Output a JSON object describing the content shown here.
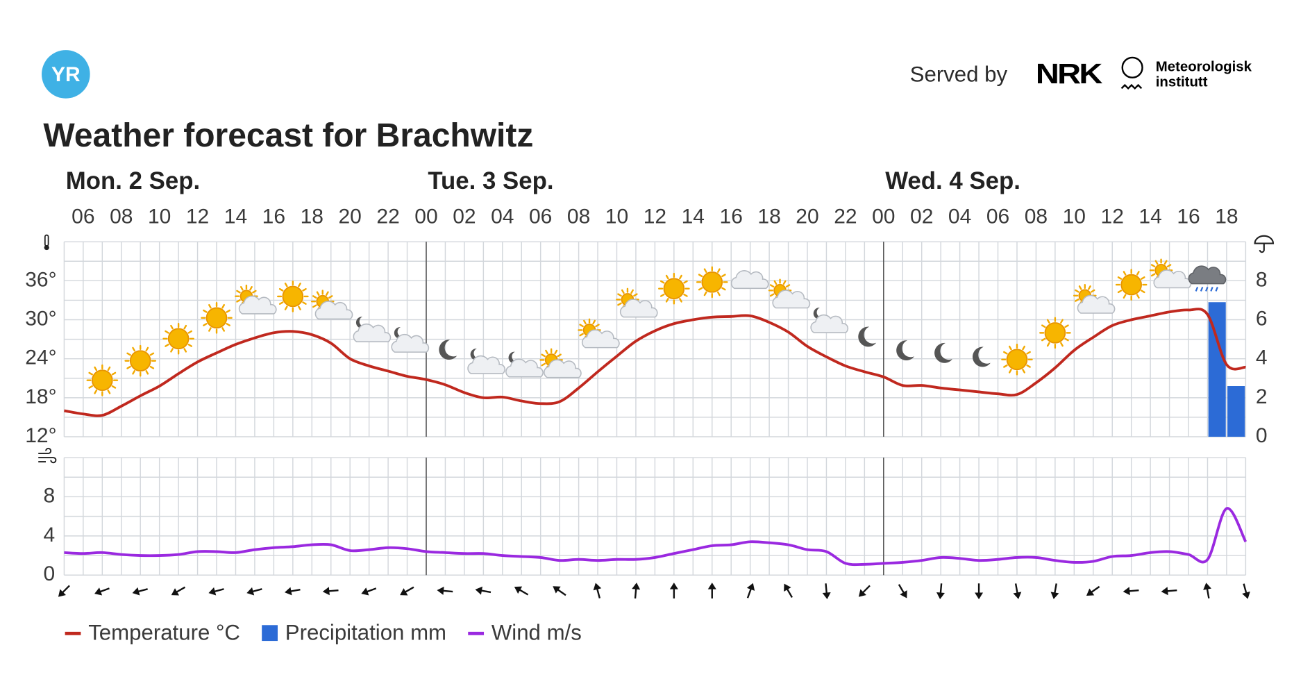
{
  "header": {
    "logo": "YR",
    "served_by": "Served by",
    "nrk": "NRK",
    "met": [
      "Meteorologisk",
      "institutt"
    ]
  },
  "chart_data": [
    {
      "type": "line",
      "title": "Weather forecast for Brachwitz",
      "days": [
        {
          "value": 0,
          "label": "Mon. 2 Sep."
        },
        {
          "value": 24,
          "label": "Tue. 3 Sep."
        },
        {
          "value": 48,
          "label": "Wed. 4 Sep."
        }
      ],
      "x": [
        5,
        6,
        7,
        8,
        9,
        10,
        11,
        12,
        13,
        14,
        15,
        16,
        17,
        18,
        19,
        20,
        21,
        22,
        23,
        24,
        25,
        26,
        27,
        28,
        29,
        30,
        31,
        32,
        33,
        34,
        35,
        36,
        37,
        38,
        39,
        40,
        41,
        42,
        43,
        44,
        45,
        46,
        47,
        48,
        49,
        50,
        51,
        52,
        53,
        54,
        55,
        56,
        57,
        58,
        59,
        60,
        61,
        62,
        63,
        64,
        65,
        66,
        67
      ],
      "xlim": [
        5,
        67
      ],
      "xticks": [
        {
          "value": 6,
          "label": "06"
        },
        {
          "value": 8,
          "label": "08"
        },
        {
          "value": 10,
          "label": "10"
        },
        {
          "value": 12,
          "label": "12"
        },
        {
          "value": 14,
          "label": "14"
        },
        {
          "value": 16,
          "label": "16"
        },
        {
          "value": 18,
          "label": "18"
        },
        {
          "value": 20,
          "label": "20"
        },
        {
          "value": 22,
          "label": "22"
        },
        {
          "value": 24,
          "label": "00"
        },
        {
          "value": 26,
          "label": "02"
        },
        {
          "value": 28,
          "label": "04"
        },
        {
          "value": 30,
          "label": "06"
        },
        {
          "value": 32,
          "label": "08"
        },
        {
          "value": 34,
          "label": "10"
        },
        {
          "value": 36,
          "label": "12"
        },
        {
          "value": 38,
          "label": "14"
        },
        {
          "value": 40,
          "label": "16"
        },
        {
          "value": 42,
          "label": "18"
        },
        {
          "value": 44,
          "label": "20"
        },
        {
          "value": 46,
          "label": "22"
        },
        {
          "value": 48,
          "label": "00"
        },
        {
          "value": 50,
          "label": "02"
        },
        {
          "value": 52,
          "label": "04"
        },
        {
          "value": 54,
          "label": "06"
        },
        {
          "value": 56,
          "label": "08"
        },
        {
          "value": 58,
          "label": "10"
        },
        {
          "value": 60,
          "label": "12"
        },
        {
          "value": 62,
          "label": "14"
        },
        {
          "value": 64,
          "label": "16"
        },
        {
          "value": 66,
          "label": "18"
        }
      ],
      "ylim": [
        12,
        42
      ],
      "yticks": [
        {
          "value": 12,
          "label": "12°"
        },
        {
          "value": 18,
          "label": "18°"
        },
        {
          "value": 24,
          "label": "24°"
        },
        {
          "value": 30,
          "label": "30°"
        },
        {
          "value": 36,
          "label": "36°"
        }
      ],
      "ygrid": [
        12,
        15,
        18,
        21,
        24,
        27,
        30,
        33,
        36,
        39,
        42
      ],
      "y2lim": [
        0,
        10
      ],
      "y2ticks": [
        0,
        2,
        4,
        6,
        8
      ],
      "grid": true,
      "series": [
        {
          "name": "Temperature °C",
          "type": "line",
          "color": "#c0281e",
          "values": [
            16.0,
            15.5,
            15.3,
            16.7,
            18.3,
            19.8,
            21.7,
            23.5,
            24.9,
            26.2,
            27.2,
            28.0,
            28.2,
            27.7,
            26.4,
            24.0,
            22.9,
            22.1,
            21.3,
            20.8,
            20.0,
            18.8,
            18.0,
            18.1,
            17.5,
            17.1,
            17.4,
            19.5,
            22.0,
            24.4,
            26.7,
            28.3,
            29.4,
            30.0,
            30.4,
            30.5,
            30.6,
            29.6,
            28.1,
            25.9,
            24.3,
            22.9,
            22.0,
            21.2,
            19.9,
            19.9,
            19.5,
            19.2,
            18.9,
            18.6,
            18.5,
            20.3,
            22.6,
            25.3,
            27.3,
            29.1,
            30.0,
            30.6,
            31.2,
            31.5,
            30.8,
            23.1,
            22.7
          ]
        },
        {
          "name": "Precipitation mm",
          "type": "bar",
          "axis": "y2",
          "color": "#2c6bd6",
          "x": [
            65,
            66
          ],
          "values": [
            6.9,
            2.6
          ]
        }
      ]
    },
    {
      "type": "line",
      "x": [
        5,
        6,
        7,
        8,
        9,
        10,
        11,
        12,
        13,
        14,
        15,
        16,
        17,
        18,
        19,
        20,
        21,
        22,
        23,
        24,
        25,
        26,
        27,
        28,
        29,
        30,
        31,
        32,
        33,
        34,
        35,
        36,
        37,
        38,
        39,
        40,
        41,
        42,
        43,
        44,
        45,
        46,
        47,
        48,
        49,
        50,
        51,
        52,
        53,
        54,
        55,
        56,
        57,
        58,
        59,
        60,
        61,
        62,
        63,
        64,
        65,
        66,
        67
      ],
      "ylim": [
        0,
        12
      ],
      "yticks": [
        0,
        4,
        8
      ],
      "ygrid": [
        0,
        2,
        4,
        6,
        8,
        10,
        12
      ],
      "grid": true,
      "series": [
        {
          "name": "Wind m/s",
          "type": "line",
          "color": "#9a29e0",
          "values": [
            2.3,
            2.2,
            2.3,
            2.1,
            2.0,
            2.0,
            2.1,
            2.4,
            2.4,
            2.3,
            2.6,
            2.8,
            2.9,
            3.1,
            3.1,
            2.5,
            2.6,
            2.8,
            2.7,
            2.4,
            2.3,
            2.2,
            2.2,
            2.0,
            1.9,
            1.8,
            1.5,
            1.6,
            1.5,
            1.6,
            1.6,
            1.8,
            2.2,
            2.6,
            3.0,
            3.1,
            3.4,
            3.3,
            3.1,
            2.6,
            2.4,
            1.2,
            1.1,
            1.2,
            1.3,
            1.5,
            1.8,
            1.7,
            1.5,
            1.6,
            1.8,
            1.8,
            1.5,
            1.3,
            1.4,
            1.9,
            2.0,
            2.3,
            2.4,
            2.1,
            1.6,
            6.8,
            3.4
          ]
        }
      ],
      "wind_direction": {
        "x": [
          5,
          7,
          9,
          11,
          13,
          15,
          17,
          19,
          21,
          23,
          25,
          27,
          29,
          31,
          33,
          35,
          37,
          39,
          41,
          43,
          45,
          47,
          49,
          51,
          53,
          55,
          57,
          59,
          61,
          63,
          65,
          67
        ],
        "values": [
          225,
          250,
          255,
          240,
          255,
          255,
          260,
          265,
          250,
          240,
          275,
          280,
          300,
          305,
          345,
          5,
          0,
          0,
          20,
          330,
          175,
          225,
          150,
          185,
          180,
          170,
          190,
          235,
          265,
          265,
          350,
          165
        ]
      }
    }
  ]
}
